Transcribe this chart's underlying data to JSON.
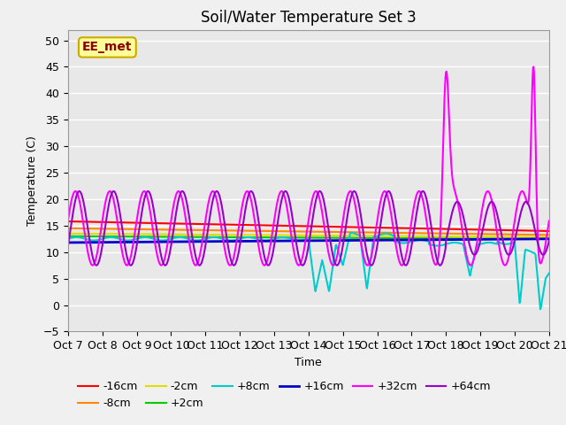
{
  "title": "Soil/Water Temperature Set 3",
  "xlabel": "Time",
  "ylabel": "Temperature (C)",
  "ylim": [
    -5,
    52
  ],
  "xlim": [
    0,
    14
  ],
  "x_tick_labels": [
    "Oct 7",
    "Oct 8",
    "Oct 9",
    "Oct 10",
    "Oct 11",
    "Oct 12",
    "Oct 13",
    "Oct 14",
    "Oct 15",
    "Oct 16",
    "Oct 17",
    "Oct 18",
    "Oct 19",
    "Oct 20",
    "Oct 21"
  ],
  "annotation_text": "EE_met",
  "annotation_color": "#8B0000",
  "annotation_bg": "#FFFF99",
  "annotation_border": "#CCAA00",
  "series": {
    "neg16cm": {
      "color": "#FF0000",
      "label": "-16cm",
      "lw": 1.5
    },
    "neg8cm": {
      "color": "#FF8800",
      "label": "-8cm",
      "lw": 1.5
    },
    "neg2cm": {
      "color": "#DDDD00",
      "label": "-2cm",
      "lw": 1.5
    },
    "pos2cm": {
      "color": "#00CC00",
      "label": "+2cm",
      "lw": 1.5
    },
    "pos8cm": {
      "color": "#00CCCC",
      "label": "+8cm",
      "lw": 1.5
    },
    "pos16cm": {
      "color": "#0000CC",
      "label": "+16cm",
      "lw": 2.0
    },
    "pos32cm": {
      "color": "#FF00FF",
      "label": "+32cm",
      "lw": 1.5
    },
    "pos64cm": {
      "color": "#9900CC",
      "label": "+64cm",
      "lw": 1.5
    }
  },
  "background_color": "#E8E8E8",
  "grid_color": "#FFFFFF",
  "title_fontsize": 12,
  "axis_fontsize": 9,
  "tick_fontsize": 9
}
